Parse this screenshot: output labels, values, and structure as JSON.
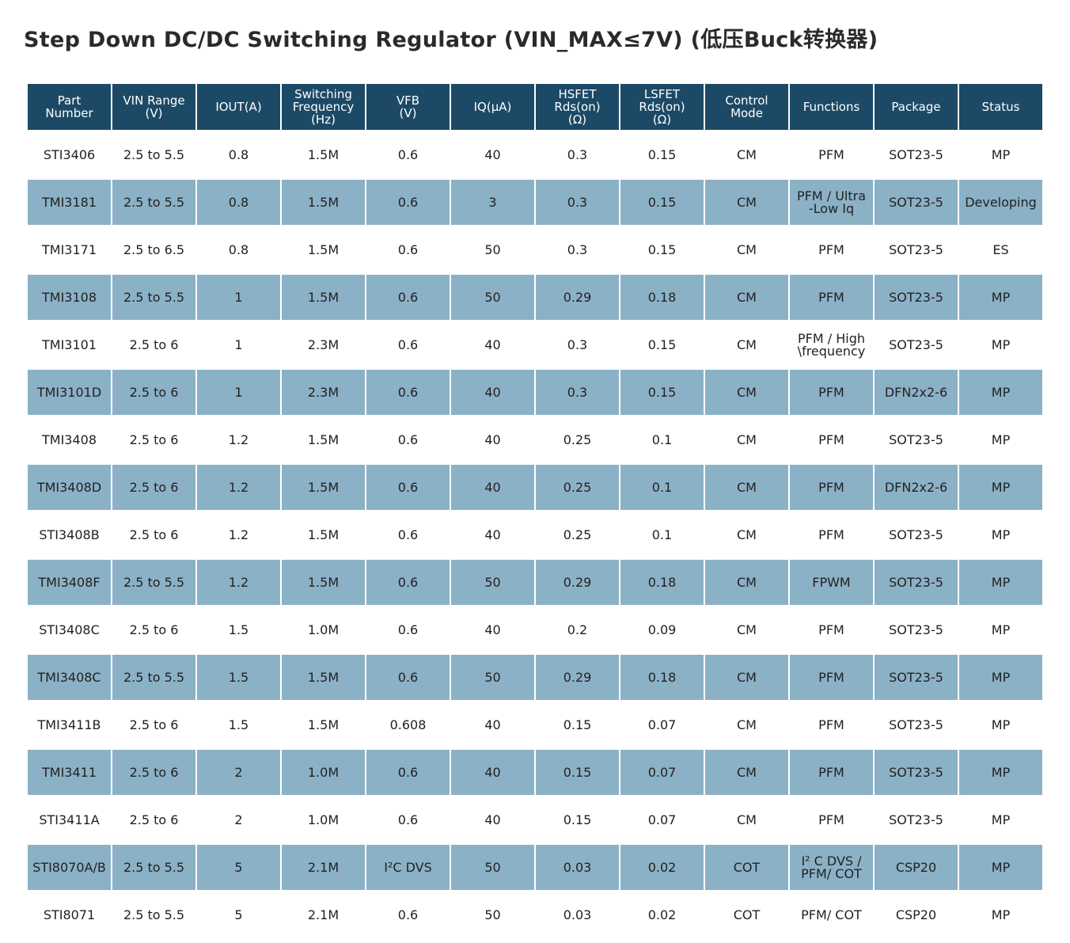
{
  "title": "Step Down DC/DC Switching Regulator (VIN_MAX≤7V) (低压Buck转换器)",
  "table": {
    "headers": [
      "Part\nNumber",
      "VIN Range\n(V)",
      "IOUT(A)",
      "Switching\nFrequency\n(Hz)",
      "VFB\n(V)",
      "IQ(μA)",
      "HSFET\nRds(on)\n(Ω)",
      "LSFET\nRds(on)\n(Ω)",
      "Control\nMode",
      "Functions",
      "Package",
      "Status"
    ],
    "rows": [
      [
        "STI3406",
        "2.5 to 5.5",
        "0.8",
        "1.5M",
        "0.6",
        "40",
        "0.3",
        "0.15",
        "CM",
        "PFM",
        "SOT23-5",
        "MP"
      ],
      [
        "TMI3181",
        "2.5 to 5.5",
        "0.8",
        "1.5M",
        "0.6",
        "3",
        "0.3",
        "0.15",
        "CM",
        "PFM / Ultra\n-Low Iq",
        "SOT23-5",
        "Developing"
      ],
      [
        "TMI3171",
        "2.5 to 6.5",
        "0.8",
        "1.5M",
        "0.6",
        "50",
        "0.3",
        "0.15",
        "CM",
        "PFM",
        "SOT23-5",
        "ES"
      ],
      [
        "TMI3108",
        "2.5 to 5.5",
        "1",
        "1.5M",
        "0.6",
        "50",
        "0.29",
        "0.18",
        "CM",
        "PFM",
        "SOT23-5",
        "MP"
      ],
      [
        "TMI3101",
        "2.5 to 6",
        "1",
        "2.3M",
        "0.6",
        "40",
        "0.3",
        "0.15",
        "CM",
        "PFM / High\n\\frequency",
        "SOT23-5",
        "MP"
      ],
      [
        "TMI3101D",
        "2.5 to 6",
        "1",
        "2.3M",
        "0.6",
        "40",
        "0.3",
        "0.15",
        "CM",
        "PFM",
        "DFN2x2-6",
        "MP"
      ],
      [
        "TMI3408",
        "2.5 to 6",
        "1.2",
        "1.5M",
        "0.6",
        "40",
        "0.25",
        "0.1",
        "CM",
        "PFM",
        "SOT23-5",
        "MP"
      ],
      [
        "TMI3408D",
        "2.5 to 6",
        "1.2",
        "1.5M",
        "0.6",
        "40",
        "0.25",
        "0.1",
        "CM",
        "PFM",
        "DFN2x2-6",
        "MP"
      ],
      [
        "STI3408B",
        "2.5 to 6",
        "1.2",
        "1.5M",
        "0.6",
        "40",
        "0.25",
        "0.1",
        "CM",
        "PFM",
        "SOT23-5",
        "MP"
      ],
      [
        "TMI3408F",
        "2.5 to 5.5",
        "1.2",
        "1.5M",
        "0.6",
        "50",
        "0.29",
        "0.18",
        "CM",
        "FPWM",
        "SOT23-5",
        "MP"
      ],
      [
        "STI3408C",
        "2.5 to 6",
        "1.5",
        "1.0M",
        "0.6",
        "40",
        "0.2",
        "0.09",
        "CM",
        "PFM",
        "SOT23-5",
        "MP"
      ],
      [
        "TMI3408C",
        "2.5 to 5.5",
        "1.5",
        "1.5M",
        "0.6",
        "50",
        "0.29",
        "0.18",
        "CM",
        "PFM",
        "SOT23-5",
        "MP"
      ],
      [
        "TMI3411B",
        "2.5 to 6",
        "1.5",
        "1.5M",
        "0.608",
        "40",
        "0.15",
        "0.07",
        "CM",
        "PFM",
        "SOT23-5",
        "MP"
      ],
      [
        "TMI3411",
        "2.5 to 6",
        "2",
        "1.0M",
        "0.6",
        "40",
        "0.15",
        "0.07",
        "CM",
        "PFM",
        "SOT23-5",
        "MP"
      ],
      [
        "STI3411A",
        "2.5 to 6",
        "2",
        "1.0M",
        "0.6",
        "40",
        "0.15",
        "0.07",
        "CM",
        "PFM",
        "SOT23-5",
        "MP"
      ],
      [
        "STI8070A/B",
        "2.5 to 5.5",
        "5",
        "2.1M",
        "I²C DVS",
        "50",
        "0.03",
        "0.02",
        "COT",
        "I² C DVS /\nPFM/ COT",
        "CSP20",
        "MP"
      ],
      [
        "STI8071",
        "2.5 to 5.5",
        "5",
        "2.1M",
        "0.6",
        "50",
        "0.03",
        "0.02",
        "COT",
        "PFM/ COT",
        "CSP20",
        "MP"
      ]
    ]
  }
}
